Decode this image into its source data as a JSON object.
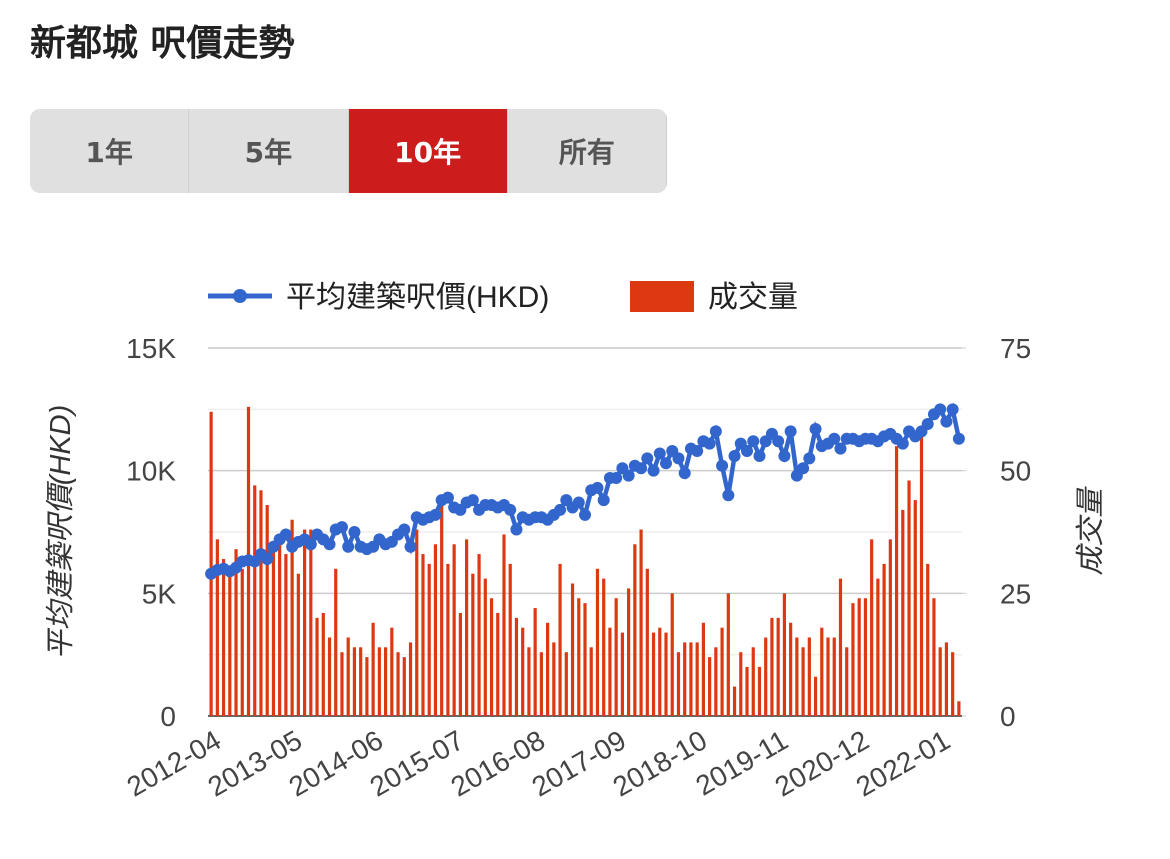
{
  "header": {
    "title": "新都城 呎價走勢"
  },
  "tabs": {
    "items": [
      "1年",
      "5年",
      "10年",
      "所有"
    ],
    "active": 2
  },
  "chart_data": {
    "type": "combo",
    "y_label": "平均建築呎價(HKD)",
    "y2_label": "成交量",
    "categories": [
      "2012-04",
      null,
      null,
      null,
      null,
      null,
      null,
      null,
      null,
      null,
      null,
      null,
      null,
      "2013-05",
      null,
      null,
      null,
      null,
      null,
      null,
      null,
      null,
      null,
      null,
      null,
      null,
      "2014-06",
      null,
      null,
      null,
      null,
      null,
      null,
      null,
      null,
      null,
      null,
      null,
      null,
      "2015-07",
      null,
      null,
      null,
      null,
      null,
      null,
      null,
      null,
      null,
      null,
      null,
      null,
      "2016-08",
      null,
      null,
      null,
      null,
      null,
      null,
      null,
      null,
      null,
      null,
      null,
      null,
      "2017-09",
      null,
      null,
      null,
      null,
      null,
      null,
      null,
      null,
      null,
      null,
      null,
      null,
      "2018-10",
      null,
      null,
      null,
      null,
      null,
      null,
      null,
      null,
      null,
      null,
      null,
      null,
      "2019-11",
      null,
      null,
      null,
      null,
      null,
      null,
      null,
      null,
      null,
      null,
      null,
      null,
      "2020-12",
      null,
      null,
      null,
      null,
      null,
      null,
      null,
      null,
      null,
      null,
      null,
      null,
      "2022-01",
      null,
      null,
      null
    ],
    "ylim": [
      0,
      15000
    ],
    "yticks": [
      0,
      {
        "value": 5000,
        "label": "5K"
      },
      {
        "value": 10000,
        "label": "10K"
      },
      {
        "value": 15000,
        "label": "15K"
      }
    ],
    "y2lim": [
      0,
      75
    ],
    "y2ticks": [
      0,
      25,
      50,
      75
    ],
    "grid": true,
    "legend": "top",
    "series": [
      {
        "name": "平均建築呎價(HKD)",
        "type": "line",
        "color": "#3366cc",
        "values": [
          5800,
          5950,
          6000,
          5900,
          6050,
          6300,
          6350,
          6300,
          6600,
          6400,
          6900,
          7200,
          7400,
          6900,
          7100,
          7200,
          7000,
          7400,
          7200,
          7000,
          7600,
          7700,
          6900,
          7500,
          6900,
          6800,
          6900,
          7200,
          7000,
          7100,
          7400,
          7600,
          6900,
          8100,
          8000,
          8100,
          8200,
          8800,
          8900,
          8500,
          8400,
          8700,
          8800,
          8400,
          8600,
          8600,
          8500,
          8600,
          8400,
          7600,
          8100,
          8000,
          8100,
          8100,
          8000,
          8200,
          8400,
          8800,
          8500,
          8700,
          8200,
          9200,
          9300,
          8800,
          9700,
          9700,
          10100,
          9800,
          10200,
          10100,
          10500,
          10000,
          10700,
          10300,
          10800,
          10500,
          9900,
          10900,
          10800,
          11200,
          11100,
          11600,
          10200,
          9000,
          10600,
          11100,
          10800,
          11200,
          10600,
          11200,
          11500,
          11200,
          10600,
          11600,
          9800,
          10100,
          10500,
          11700,
          11000,
          11100,
          11300,
          10900,
          11300,
          11300,
          11200,
          11300,
          11300,
          11200,
          11400,
          11500,
          11300,
          11100,
          11600,
          11400,
          11600,
          11900,
          12300,
          12500,
          12000,
          12500,
          11300
        ]
      },
      {
        "name": "成交量",
        "type": "bar",
        "axis": "y2",
        "color": "#dc3912",
        "values": [
          62,
          36,
          32,
          29,
          34,
          30,
          63,
          47,
          46,
          43,
          34,
          35,
          33,
          40,
          29,
          38,
          38,
          20,
          21,
          16,
          30,
          13,
          16,
          14,
          14,
          12,
          19,
          14,
          14,
          18,
          13,
          12,
          15,
          38,
          33,
          31,
          35,
          44,
          31,
          35,
          21,
          36,
          29,
          33,
          28,
          24,
          21,
          37,
          31,
          20,
          18,
          14,
          22,
          13,
          19,
          15,
          31,
          13,
          27,
          24,
          23,
          14,
          30,
          28,
          18,
          24,
          17,
          26,
          35,
          38,
          30,
          17,
          18,
          17,
          25,
          13,
          15,
          15,
          15,
          19,
          12,
          14,
          18,
          25,
          6,
          13,
          10,
          14,
          10,
          16,
          20,
          20,
          25,
          19,
          16,
          14,
          16,
          8,
          18,
          16,
          16,
          28,
          14,
          23,
          24,
          24,
          36,
          28,
          31,
          36,
          55,
          42,
          48,
          44,
          57,
          31,
          24,
          14,
          15,
          13,
          3
        ]
      }
    ]
  }
}
